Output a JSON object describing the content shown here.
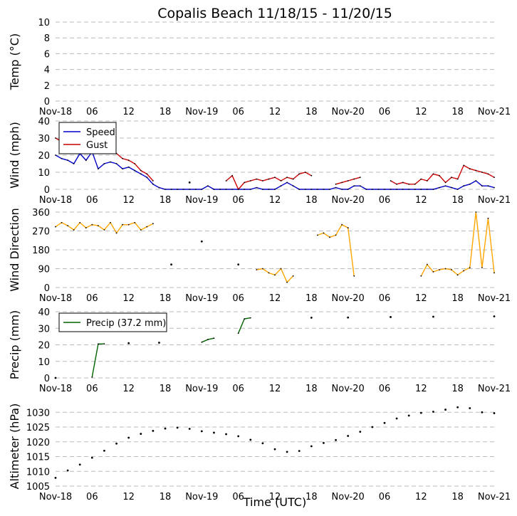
{
  "title": "Copalis Beach 11/18/15 - 11/20/15",
  "xlabel": "Time (UTC)",
  "x_tick_labels": [
    "Nov-18",
    "06",
    "12",
    "18",
    "Nov-19",
    "06",
    "12",
    "18",
    "Nov-20",
    "06",
    "12",
    "18",
    "Nov-21"
  ],
  "x_range_hours": [
    0,
    72
  ],
  "colors": {
    "speed": "#0000cc",
    "gust": "#cc0000",
    "direction": "#ffa500",
    "precip": "#006400",
    "altimeter": "#8b0000",
    "grid": "#bbbbbb",
    "marker": "#000000"
  },
  "chart_data": [
    {
      "type": "line",
      "ylabel": "Temp (°C)",
      "ylim": [
        0,
        10
      ],
      "yticks": [
        0,
        2,
        4,
        6,
        8,
        10
      ],
      "grid": true,
      "series": [
        {
          "x": [],
          "y": []
        }
      ]
    },
    {
      "type": "line",
      "ylabel": "Wind (mph)",
      "ylim": [
        0,
        40
      ],
      "yticks": [
        0,
        10,
        20,
        30,
        40
      ],
      "grid": true,
      "legend": "top-left",
      "series": [
        {
          "name": "Speed",
          "x": [
            0,
            1,
            2,
            3,
            4,
            5,
            6,
            7,
            8,
            9,
            10,
            11,
            12,
            13,
            14,
            15,
            16,
            17,
            18,
            19,
            20,
            21,
            22,
            23,
            24,
            25,
            26,
            27,
            28,
            29,
            30,
            31,
            32,
            33,
            34,
            35,
            36,
            37,
            38,
            39,
            40,
            41,
            42,
            43,
            44,
            45,
            46,
            47,
            48,
            49,
            50,
            51,
            52,
            53,
            54,
            55,
            56,
            57,
            58,
            59,
            60,
            61,
            62,
            63,
            64,
            65,
            66,
            67,
            68,
            69,
            70,
            71,
            72
          ],
          "y": [
            20,
            18,
            17,
            15,
            21,
            17,
            22,
            12,
            15,
            16,
            15,
            12,
            13,
            11,
            9,
            7,
            3,
            1,
            0,
            0,
            0,
            0,
            0,
            0,
            0,
            2,
            0,
            0,
            0,
            0,
            0,
            0,
            0,
            1,
            0,
            0,
            0,
            2,
            4,
            2,
            0,
            0,
            0,
            0,
            0,
            0,
            1,
            0,
            0,
            2,
            2,
            0,
            0,
            0,
            0,
            0,
            0,
            0,
            0,
            0,
            0,
            0,
            0,
            1,
            2,
            1,
            0,
            2,
            3,
            5,
            2,
            2,
            1
          ]
        },
        {
          "name": "Gust",
          "x": [
            0,
            1,
            2,
            3,
            4,
            5,
            6,
            7,
            8,
            9,
            10,
            11,
            12,
            13,
            14,
            15,
            16,
            22,
            28,
            29,
            30,
            31,
            32,
            33,
            34,
            35,
            36,
            37,
            38,
            39,
            40,
            41,
            42,
            46,
            47,
            48,
            49,
            50,
            55,
            56,
            57,
            58,
            59,
            60,
            61,
            62,
            63,
            64,
            65,
            66,
            67,
            68,
            69,
            70,
            71,
            72
          ],
          "y": [
            30,
            28,
            27,
            25,
            29,
            27,
            28,
            24,
            22,
            25,
            21,
            18,
            17,
            15,
            11,
            9,
            5,
            4,
            5,
            8,
            0,
            4,
            5,
            6,
            5,
            6,
            7,
            5,
            7,
            6,
            9,
            10,
            8,
            3,
            4,
            5,
            6,
            7,
            5,
            3,
            4,
            3,
            3,
            6,
            5,
            9,
            8,
            4,
            7,
            6,
            14,
            12,
            11,
            10,
            9,
            7
          ]
        }
      ]
    },
    {
      "type": "line",
      "ylabel": "Wind Direction",
      "ylim": [
        0,
        360
      ],
      "yticks": [
        0,
        90,
        180,
        270,
        360
      ],
      "grid": true,
      "series": [
        {
          "name": "",
          "x": [
            0,
            1,
            2,
            3,
            4,
            5,
            6,
            7,
            8,
            9,
            10,
            11,
            12,
            13,
            14,
            15,
            16,
            19,
            24,
            30,
            33,
            34,
            35,
            36,
            37,
            38,
            39,
            43,
            44,
            45,
            46,
            47,
            48,
            49,
            60,
            61,
            62,
            63,
            64,
            65,
            66,
            67,
            68,
            69,
            70,
            71,
            72
          ],
          "y": [
            290,
            310,
            295,
            275,
            310,
            285,
            300,
            295,
            275,
            310,
            260,
            300,
            300,
            310,
            275,
            290,
            305,
            110,
            220,
            110,
            85,
            90,
            70,
            60,
            90,
            25,
            55,
            250,
            260,
            240,
            250,
            300,
            285,
            55,
            55,
            110,
            75,
            85,
            90,
            85,
            60,
            80,
            95,
            360,
            95,
            330,
            70
          ]
        }
      ]
    },
    {
      "type": "line",
      "ylabel": "Precip (mm)",
      "ylim": [
        0,
        40
      ],
      "yticks": [
        0,
        10,
        20,
        30,
        40
      ],
      "grid": true,
      "legend": "top-left",
      "series": [
        {
          "name": "Precip (37.2 mm)",
          "x": [
            0,
            6,
            7,
            8,
            12,
            17,
            24,
            25,
            26,
            30,
            31,
            32,
            42,
            48,
            55,
            62,
            72
          ],
          "y": [
            0,
            0.5,
            20.5,
            20.6,
            21,
            21.3,
            21.6,
            23.2,
            24,
            27,
            35.7,
            36.3,
            36.4,
            36.5,
            36.8,
            37.0,
            37.2
          ]
        }
      ]
    },
    {
      "type": "line",
      "ylabel": "Altimeter (hPa)",
      "ylim": [
        1005,
        1032
      ],
      "yticks": [
        1005,
        1010,
        1015,
        1020,
        1025,
        1030
      ],
      "grid": true,
      "series": [
        {
          "name": "",
          "x": [
            0,
            2,
            4,
            6,
            8,
            10,
            12,
            14,
            16,
            18,
            20,
            22,
            24,
            26,
            28,
            30,
            32,
            34,
            36,
            38,
            40,
            42,
            44,
            46,
            48,
            50,
            52,
            54,
            56,
            58,
            60,
            62,
            64,
            66,
            68,
            70,
            72
          ],
          "y": [
            1007.8,
            1010.3,
            1012.3,
            1014.6,
            1017.0,
            1019.4,
            1021.4,
            1022.7,
            1023.7,
            1024.5,
            1024.8,
            1024.4,
            1023.6,
            1023.1,
            1022.6,
            1021.9,
            1020.7,
            1019.5,
            1017.5,
            1016.6,
            1016.9,
            1018.5,
            1019.6,
            1020.6,
            1022.0,
            1023.4,
            1025.0,
            1026.4,
            1027.9,
            1028.9,
            1029.8,
            1030.2,
            1030.9,
            1031.7,
            1031.4,
            1030.0,
            1029.7
          ]
        }
      ]
    }
  ]
}
